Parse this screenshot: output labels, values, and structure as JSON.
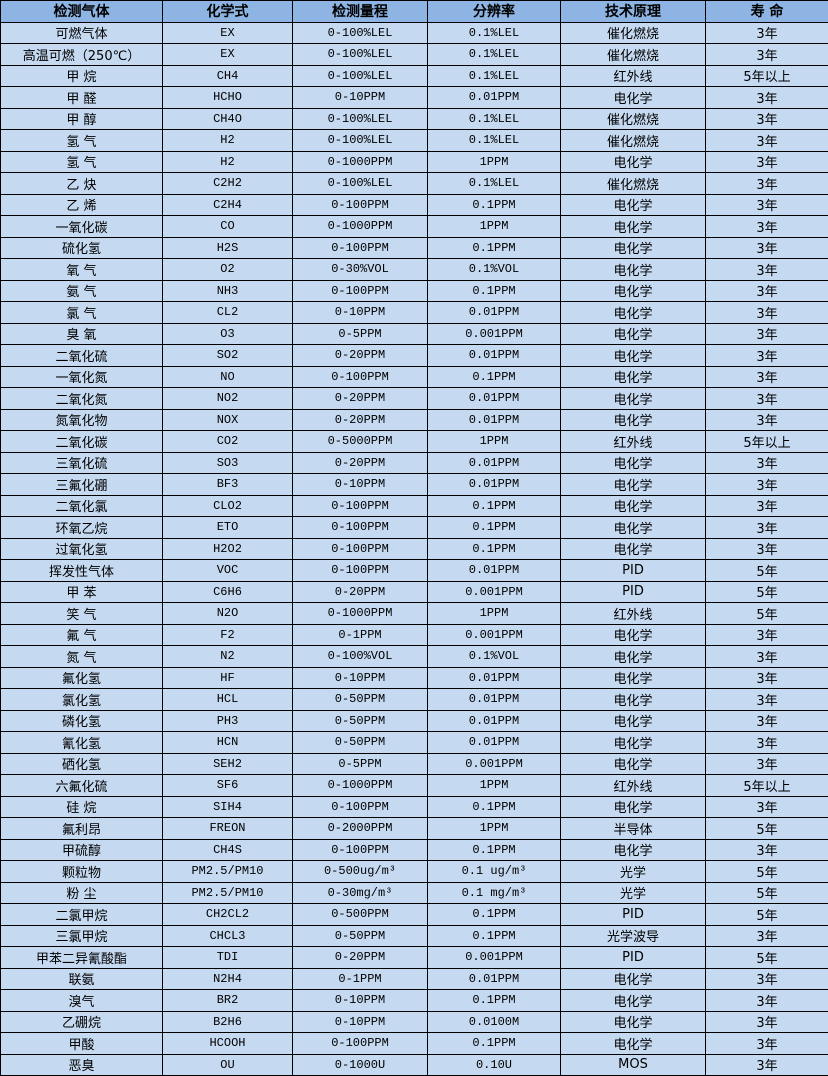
{
  "table": {
    "headers": [
      "检测气体",
      "化学式",
      "检测量程",
      "分辨率",
      "技术原理",
      "寿 命"
    ],
    "rows": [
      [
        "可燃气体",
        "EX",
        "0-100%LEL",
        "0.1%LEL",
        "催化燃烧",
        "3年"
      ],
      [
        "高温可燃（250℃）",
        "EX",
        "0-100%LEL",
        "0.1%LEL",
        "催化燃烧",
        "3年"
      ],
      [
        "甲 烷",
        "CH4",
        "0-100%LEL",
        "0.1%LEL",
        "红外线",
        "5年以上"
      ],
      [
        "甲 醛",
        "HCHO",
        "0-10PPM",
        "0.01PPM",
        "电化学",
        "3年"
      ],
      [
        "甲 醇",
        "CH4O",
        "0-100%LEL",
        "0.1%LEL",
        "催化燃烧",
        "3年"
      ],
      [
        "氢 气",
        "H2",
        "0-100%LEL",
        "0.1%LEL",
        "催化燃烧",
        "3年"
      ],
      [
        "氢 气",
        "H2",
        "0-1000PPM",
        "1PPM",
        "电化学",
        "3年"
      ],
      [
        "乙 炔",
        "C2H2",
        "0-100%LEL",
        "0.1%LEL",
        "催化燃烧",
        "3年"
      ],
      [
        "乙 烯",
        "C2H4",
        "0-100PPM",
        "0.1PPM",
        "电化学",
        "3年"
      ],
      [
        "一氧化碳",
        "CO",
        "0-1000PPM",
        "1PPM",
        "电化学",
        "3年"
      ],
      [
        "硫化氢",
        "H2S",
        "0-100PPM",
        "0.1PPM",
        "电化学",
        "3年"
      ],
      [
        "氧 气",
        "O2",
        "0-30%VOL",
        "0.1%VOL",
        "电化学",
        "3年"
      ],
      [
        "氨 气",
        "NH3",
        "0-100PPM",
        "0.1PPM",
        "电化学",
        "3年"
      ],
      [
        "氯 气",
        "CL2",
        "0-10PPM",
        "0.01PPM",
        "电化学",
        "3年"
      ],
      [
        "臭 氧",
        "O3",
        "0-5PPM",
        "0.001PPM",
        "电化学",
        "3年"
      ],
      [
        "二氧化硫",
        "SO2",
        "0-20PPM",
        "0.01PPM",
        "电化学",
        "3年"
      ],
      [
        "一氧化氮",
        "NO",
        "0-100PPM",
        "0.1PPM",
        "电化学",
        "3年"
      ],
      [
        "二氧化氮",
        "NO2",
        "0-20PPM",
        "0.01PPM",
        "电化学",
        "3年"
      ],
      [
        "氮氧化物",
        "NOX",
        "0-20PPM",
        "0.01PPM",
        "电化学",
        "3年"
      ],
      [
        "二氧化碳",
        "CO2",
        "0-5000PPM",
        "1PPM",
        "红外线",
        "5年以上"
      ],
      [
        "三氧化硫",
        "SO3",
        "0-20PPM",
        "0.01PPM",
        "电化学",
        "3年"
      ],
      [
        "三氟化硼",
        "BF3",
        "0-10PPM",
        "0.01PPM",
        "电化学",
        "3年"
      ],
      [
        "二氧化氯",
        "CLO2",
        "0-100PPM",
        "0.1PPM",
        "电化学",
        "3年"
      ],
      [
        "环氧乙烷",
        "ETO",
        "0-100PPM",
        "0.1PPM",
        "电化学",
        "3年"
      ],
      [
        "过氧化氢",
        "H2O2",
        "0-100PPM",
        "0.1PPM",
        "电化学",
        "3年"
      ],
      [
        "挥发性气体",
        "VOC",
        "0-100PPM",
        "0.01PPM",
        "PID",
        "5年"
      ],
      [
        "甲 苯",
        "C6H6",
        "0-20PPM",
        "0.001PPM",
        "PID",
        "5年"
      ],
      [
        "笑 气",
        "N2O",
        "0-1000PPM",
        "1PPM",
        "红外线",
        "5年"
      ],
      [
        "氟 气",
        "F2",
        "0-1PPM",
        "0.001PPM",
        "电化学",
        "3年"
      ],
      [
        "氮 气",
        "N2",
        "0-100%VOL",
        "0.1%VOL",
        "电化学",
        "3年"
      ],
      [
        "氟化氢",
        "HF",
        "0-10PPM",
        "0.01PPM",
        "电化学",
        "3年"
      ],
      [
        "氯化氢",
        "HCL",
        "0-50PPM",
        "0.01PPM",
        "电化学",
        "3年"
      ],
      [
        "磷化氢",
        "PH3",
        "0-50PPM",
        "0.01PPM",
        "电化学",
        "3年"
      ],
      [
        "氰化氢",
        "HCN",
        "0-50PPM",
        "0.01PPM",
        "电化学",
        "3年"
      ],
      [
        "硒化氢",
        "SEH2",
        "0-5PPM",
        "0.001PPM",
        "电化学",
        "3年"
      ],
      [
        "六氟化硫",
        "SF6",
        "0-1000PPM",
        "1PPM",
        "红外线",
        "5年以上"
      ],
      [
        "硅 烷",
        "SIH4",
        "0-100PPM",
        "0.1PPM",
        "电化学",
        "3年"
      ],
      [
        "氟利昂",
        "FREON",
        "0-2000PPM",
        "1PPM",
        "半导体",
        "5年"
      ],
      [
        "甲硫醇",
        "CH4S",
        "0-100PPM",
        "0.1PPM",
        "电化学",
        "3年"
      ],
      [
        "颗粒物",
        "PM2.5/PM10",
        "0-500ug/m³",
        "0.1 ug/m³",
        "光学",
        "5年"
      ],
      [
        "粉 尘",
        "PM2.5/PM10",
        "0-30mg/m³",
        "0.1 mg/m³",
        "光学",
        "5年"
      ],
      [
        "二氯甲烷",
        "CH2CL2",
        "0-500PPM",
        "0.1PPM",
        "PID",
        "5年"
      ],
      [
        "三氯甲烷",
        "CHCL3",
        "0-50PPM",
        "0.1PPM",
        "光学波导",
        "3年"
      ],
      [
        "甲苯二异氰酸酯",
        "TDI",
        "0-20PPM",
        "0.001PPM",
        "PID",
        "5年"
      ],
      [
        "联氨",
        "N2H4",
        "0-1PPM",
        "0.01PPM",
        "电化学",
        "3年"
      ],
      [
        "溴气",
        "BR2",
        "0-10PPM",
        "0.1PPM",
        "电化学",
        "3年"
      ],
      [
        "乙硼烷",
        "B2H6",
        "0-10PPM",
        "0.0100M",
        "电化学",
        "3年"
      ],
      [
        "甲酸",
        "HCOOH",
        "0-100PPM",
        "0.1PPM",
        "电化学",
        "3年"
      ],
      [
        "恶臭",
        "OU",
        "0-1000U",
        "0.10U",
        "MOS",
        "3年"
      ]
    ]
  }
}
